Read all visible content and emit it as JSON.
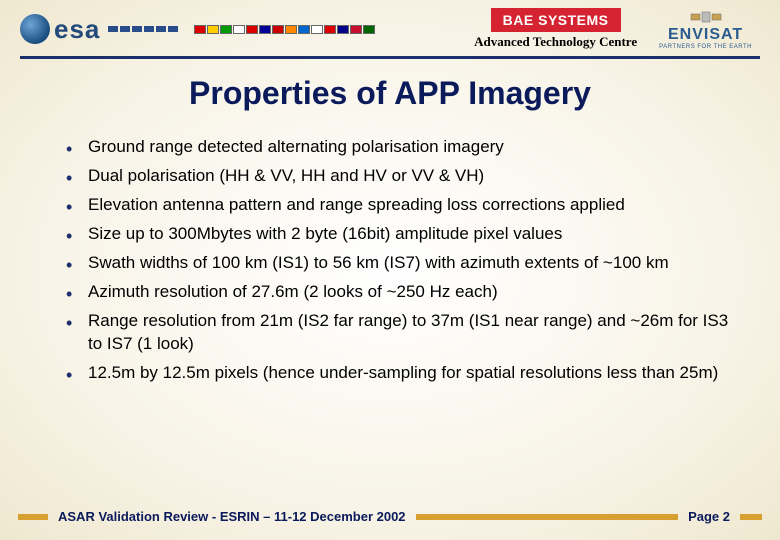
{
  "header": {
    "esa_text": "esa",
    "bae_logo": "BAE SYSTEMS",
    "bae_subtitle": "Advanced Technology Centre",
    "envisat_text": "ENVISAT",
    "envisat_tagline": "PARTNERS FOR THE EARTH",
    "flag_colors": [
      "#d00",
      "#fc0",
      "#090",
      "#fff",
      "#d00",
      "#009",
      "#c00",
      "#f80",
      "#06c",
      "#fff",
      "#d00",
      "#008",
      "#c8102e",
      "#060"
    ]
  },
  "title": "Properties of APP Imagery",
  "bullets": [
    "Ground range detected alternating polarisation imagery",
    "Dual polarisation (HH & VV, HH and HV or VV & VH)",
    "Elevation antenna pattern and range spreading loss corrections applied",
    "Size up to 300Mbytes with 2 byte (16bit) amplitude pixel values",
    "Swath widths of 100 km (IS1) to 56 km (IS7) with azimuth extents of ~100 km",
    "Azimuth resolution of 27.6m (2 looks of ~250 Hz each)",
    "Range resolution from 21m (IS2 far range) to 37m (IS1 near range) and ~26m for IS3 to IS7 (1 look)",
    "12.5m by 12.5m pixels (hence under-sampling for spatial resolutions less than 25m)"
  ],
  "footer": {
    "text": "ASAR Validation Review - ESRIN – 11-12 December 2002",
    "page_label": "Page",
    "page_num": "2"
  },
  "colors": {
    "title_color": "#0a1a5a",
    "divider_color": "#1a2f6b",
    "footer_bar": "#d8a030",
    "bae_red": "#d52331"
  }
}
